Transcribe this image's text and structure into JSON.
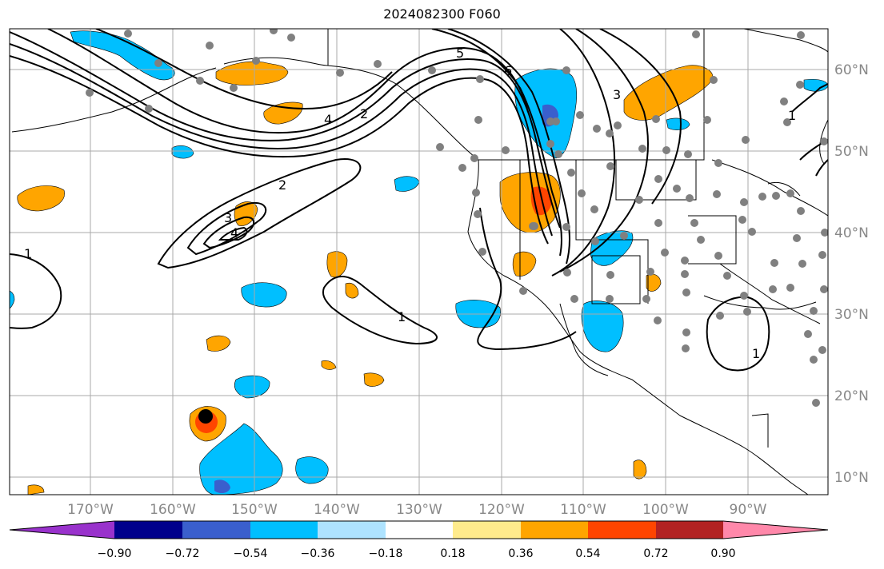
{
  "title": "2024082300 F060",
  "lon_labels": [
    "170°W",
    "160°W",
    "150°W",
    "140°W",
    "130°W",
    "120°W",
    "110°W",
    "100°W",
    "90°W"
  ],
  "lat_labels": [
    "60°N",
    "50°N",
    "40°N",
    "30°N",
    "20°N",
    "10°N"
  ],
  "contour_labels": [
    "1",
    "2",
    "3",
    "4",
    "5",
    "6",
    "2",
    "4",
    "1",
    "1",
    "1",
    "3"
  ],
  "colorbar": {
    "ticks": [
      "−0.90",
      "−0.72",
      "−0.54",
      "−0.36",
      "−0.18",
      "0.18",
      "0.36",
      "0.54",
      "0.72",
      "0.90"
    ],
    "colors": [
      "#9932cc",
      "#00008b",
      "#3a5fcd",
      "#00bfff",
      "#aee3ff",
      "#ffffff",
      "#ffeb8c",
      "#ffa500",
      "#ff4500",
      "#b22222",
      "#ff88aa"
    ]
  },
  "fill_colors": {
    "positive": "#ffa500",
    "positive_strong": "#ff4500",
    "negative": "#00bfff",
    "negative_strong": "#3a5fcd",
    "station": "#808080"
  }
}
